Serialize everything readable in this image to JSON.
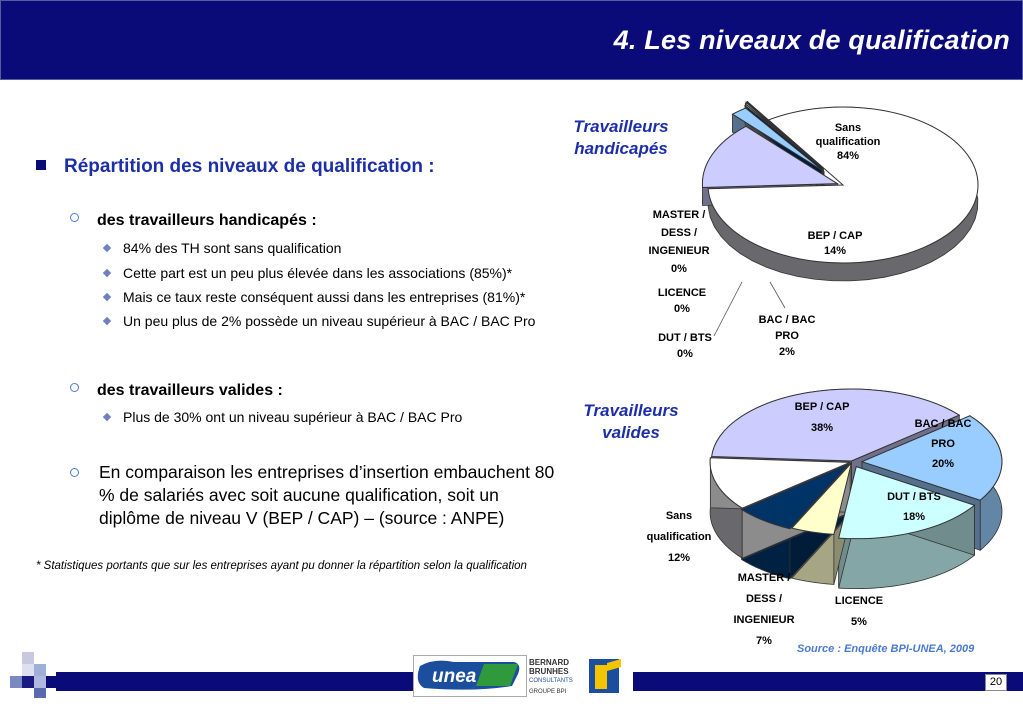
{
  "header": {
    "title": "4. Les niveaux de qualification"
  },
  "content": {
    "main_bullet": "Répartition des niveaux de qualification :",
    "sub1": "des travailleurs handicapés :",
    "sub1_items": [
      "84% des TH sont sans qualification",
      "Cette part est un peu plus élevée dans les associations (85%)*",
      "Mais ce taux reste conséquent aussi dans les entreprises (81%)*",
      "Un peu plus de 2% possède un niveau supérieur à BAC / BAC Pro"
    ],
    "sub2_bold": "des travailleurs valides",
    "sub2_rest": " :",
    "sub2_items": [
      "Plus de 30% ont un niveau supérieur à BAC / BAC Pro"
    ],
    "para": "En comparaison les entreprises d’insertion embauchent  80 % de salariés avec soit aucune qualification, soit un diplôme de niveau V (BEP / CAP) – (source : ANPE)",
    "footnote": "* Statistiques portants que sur les entreprises ayant pu donner la répartition selon la qualification"
  },
  "source": "Source : Enquête BPI-UNEA, 2009",
  "page_number": "20",
  "logos": {
    "unea": "unea",
    "bernard_lines": [
      "BERNARD",
      "BRUNHES",
      "CONSULTANTS",
      "GROUPE  BPI"
    ]
  },
  "chart_data": [
    {
      "type": "pie",
      "title": "Travailleurs handicapés",
      "slices": [
        {
          "label": "Sans qualification",
          "value": 84,
          "pct": "84%",
          "color": "#ffffff"
        },
        {
          "label": "BEP / CAP",
          "value": 14,
          "pct": "14%",
          "color": "#ccccff"
        },
        {
          "label": "BAC / BAC PRO",
          "value": 2,
          "pct": "2%",
          "color": "#99ccff"
        },
        {
          "label": "DUT / BTS",
          "value": 0,
          "pct": "0%",
          "color": "#ccffff"
        },
        {
          "label": "LICENCE",
          "value": 0,
          "pct": "0%",
          "color": "#ffffcc"
        },
        {
          "label": "MASTER / DESS / INGENIEUR",
          "value": 0,
          "pct": "0%",
          "color": "#003366"
        }
      ]
    },
    {
      "type": "pie",
      "title": "Travailleurs valides",
      "slices": [
        {
          "label": "BEP / CAP",
          "value": 38,
          "pct": "38%",
          "color": "#ccccff"
        },
        {
          "label": "BAC / BAC PRO",
          "value": 20,
          "pct": "20%",
          "color": "#99ccff"
        },
        {
          "label": "DUT / BTS",
          "value": 18,
          "pct": "18%",
          "color": "#ccffff"
        },
        {
          "label": "LICENCE",
          "value": 5,
          "pct": "5%",
          "color": "#ffffcc"
        },
        {
          "label": "MASTER / DESS / INGENIEUR",
          "value": 7,
          "pct": "7%",
          "color": "#003366"
        },
        {
          "label": "Sans qualification",
          "value": 12,
          "pct": "12%",
          "color": "#ffffff"
        }
      ]
    }
  ]
}
